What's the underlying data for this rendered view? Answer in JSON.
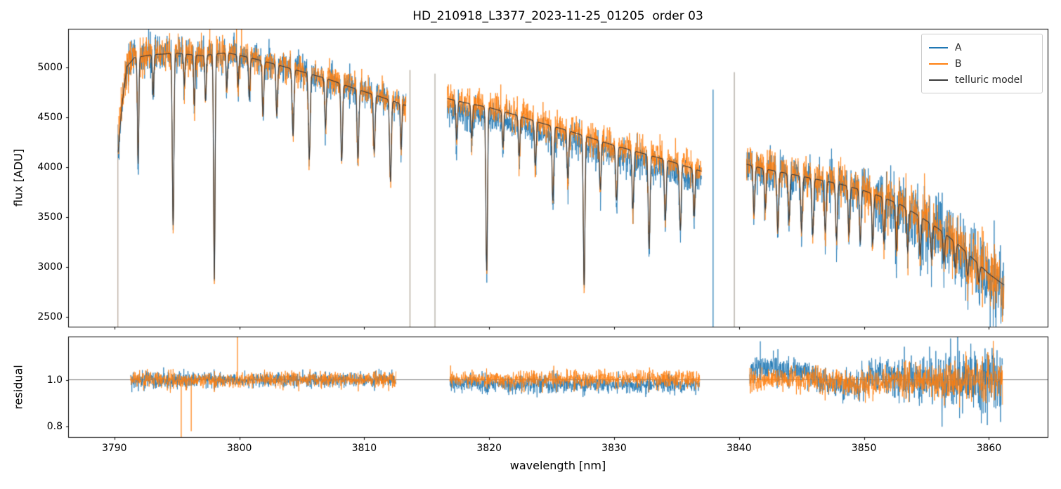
{
  "title": "HD_210918_L3377_2023-11-25_01205  order 03",
  "chart_data": {
    "type": "line",
    "title": "HD_210918_L3377_2023-11-25_01205  order 03",
    "xlabel": "wavelength [nm]",
    "xlim": [
      3786.3,
      3864.7
    ],
    "xticks": [
      3790,
      3800,
      3810,
      3820,
      3830,
      3840,
      3850,
      3860
    ],
    "legend_position": "upper right",
    "legend": [
      {
        "label": "A",
        "color": "#1f77b4"
      },
      {
        "label": "B",
        "color": "#ff7f0e"
      },
      {
        "label": "telluric model",
        "color": "#3b3b3b"
      }
    ],
    "panels": [
      {
        "ylabel": "flux [ADU]",
        "ylim": [
          2400,
          5390
        ],
        "yticks": [
          2500,
          3000,
          3500,
          4000,
          4500,
          5000
        ]
      },
      {
        "ylabel": "residual",
        "ylim": [
          0.755,
          1.185
        ],
        "yticks": [
          0.8,
          1.0
        ],
        "hline": 1.0
      }
    ],
    "sampling_step_nm": 0.02,
    "segments": [
      {
        "xrange": [
          3790.3,
          3813.35
        ],
        "res_xrange": [
          3791.3,
          3812.55
        ],
        "continuum": [
          [
            3790.3,
            4150
          ],
          [
            3790.6,
            4620
          ],
          [
            3791.0,
            5010
          ],
          [
            3791.6,
            5100
          ],
          [
            3793,
            5130
          ],
          [
            3795,
            5145
          ],
          [
            3797,
            5120
          ],
          [
            3799,
            5150
          ],
          [
            3800,
            5125
          ],
          [
            3801.5,
            5080
          ],
          [
            3803,
            5030
          ],
          [
            3805,
            4960
          ],
          [
            3807,
            4890
          ],
          [
            3809,
            4800
          ],
          [
            3811,
            4720
          ],
          [
            3813.35,
            4620
          ]
        ],
        "lines": [
          [
            3791.9,
            0.21,
            0.055
          ],
          [
            3793.1,
            0.08,
            0.06
          ],
          [
            3794.7,
            0.335,
            0.065
          ],
          [
            3795.6,
            0.06,
            0.055
          ],
          [
            3796.4,
            0.1,
            0.055
          ],
          [
            3797.3,
            0.09,
            0.055
          ],
          [
            3798.0,
            0.44,
            0.06
          ],
          [
            3799.0,
            0.07,
            0.055
          ],
          [
            3799.9,
            0.06,
            0.055
          ],
          [
            3800.8,
            0.08,
            0.06
          ],
          [
            3801.9,
            0.11,
            0.065
          ],
          [
            3803.0,
            0.1,
            0.065
          ],
          [
            3804.3,
            0.135,
            0.07
          ],
          [
            3805.6,
            0.175,
            0.07
          ],
          [
            3806.9,
            0.1,
            0.065
          ],
          [
            3808.2,
            0.16,
            0.07
          ],
          [
            3809.5,
            0.145,
            0.07
          ],
          [
            3810.8,
            0.12,
            0.07
          ],
          [
            3812.1,
            0.175,
            0.07
          ],
          [
            3812.95,
            0.1,
            0.055
          ]
        ],
        "noiseA": [
          [
            3790.3,
            110
          ],
          [
            3791.5,
            105
          ],
          [
            3794,
            95
          ],
          [
            3797,
            85
          ],
          [
            3800,
            80
          ],
          [
            3806,
            75
          ],
          [
            3813.35,
            72
          ]
        ],
        "noiseB": [
          [
            3790.3,
            110
          ],
          [
            3791.5,
            105
          ],
          [
            3794,
            95
          ],
          [
            3797,
            85
          ],
          [
            3800,
            80
          ],
          [
            3806,
            75
          ],
          [
            3813.35,
            72
          ]
        ],
        "offsetA": 0,
        "offsetB": 5
      },
      {
        "xrange": [
          3816.65,
          3837.0
        ],
        "res_xrange": [
          3816.85,
          3836.85
        ],
        "continuum": [
          [
            3816.65,
            4690
          ],
          [
            3818,
            4650
          ],
          [
            3820,
            4600
          ],
          [
            3822,
            4530
          ],
          [
            3824,
            4450
          ],
          [
            3826,
            4380
          ],
          [
            3828,
            4300
          ],
          [
            3830,
            4220
          ],
          [
            3832,
            4150
          ],
          [
            3834,
            4080
          ],
          [
            3836,
            4000
          ],
          [
            3837,
            3960
          ]
        ],
        "lines": [
          [
            3817.4,
            0.085,
            0.06
          ],
          [
            3818.6,
            0.075,
            0.06
          ],
          [
            3819.8,
            0.36,
            0.065
          ],
          [
            3821.1,
            0.08,
            0.06
          ],
          [
            3822.4,
            0.09,
            0.06
          ],
          [
            3823.7,
            0.1,
            0.065
          ],
          [
            3825.1,
            0.17,
            0.07
          ],
          [
            3826.3,
            0.11,
            0.065
          ],
          [
            3827.6,
            0.35,
            0.065
          ],
          [
            3828.9,
            0.115,
            0.065
          ],
          [
            3830.2,
            0.13,
            0.07
          ],
          [
            3831.5,
            0.14,
            0.07
          ],
          [
            3832.8,
            0.23,
            0.07
          ],
          [
            3834.1,
            0.15,
            0.07
          ],
          [
            3835.3,
            0.165,
            0.07
          ],
          [
            3836.4,
            0.12,
            0.065
          ]
        ],
        "noiseA": [
          [
            3816.65,
            85
          ],
          [
            3837,
            78
          ]
        ],
        "noiseB": [
          [
            3816.65,
            85
          ],
          [
            3837,
            78
          ]
        ],
        "offsetA": -85,
        "offsetB": 10
      },
      {
        "xrange": [
          3840.6,
          3861.2
        ],
        "res_xrange": [
          3840.85,
          3861.1
        ],
        "continuum": [
          [
            3840.6,
            4030
          ],
          [
            3842,
            3985
          ],
          [
            3844,
            3935
          ],
          [
            3846,
            3885
          ],
          [
            3848,
            3835
          ],
          [
            3850,
            3765
          ],
          [
            3851.5,
            3700
          ],
          [
            3853,
            3620
          ],
          [
            3854.5,
            3505
          ],
          [
            3856,
            3380
          ],
          [
            3857.5,
            3230
          ],
          [
            3859,
            3050
          ],
          [
            3860,
            2930
          ],
          [
            3861.2,
            2820
          ]
        ],
        "lines": [
          [
            3841.2,
            0.12,
            0.07
          ],
          [
            3842.1,
            0.1,
            0.07
          ],
          [
            3843.1,
            0.15,
            0.07
          ],
          [
            3844.0,
            0.12,
            0.07
          ],
          [
            3845.0,
            0.14,
            0.07
          ],
          [
            3845.9,
            0.145,
            0.07
          ],
          [
            3846.9,
            0.13,
            0.07
          ],
          [
            3847.8,
            0.145,
            0.07
          ],
          [
            3848.8,
            0.13,
            0.07
          ],
          [
            3849.7,
            0.14,
            0.07
          ],
          [
            3850.7,
            0.135,
            0.07
          ],
          [
            3851.6,
            0.12,
            0.07
          ],
          [
            3852.6,
            0.13,
            0.07
          ],
          [
            3853.5,
            0.12,
            0.07
          ],
          [
            3854.5,
            0.11,
            0.07
          ],
          [
            3855.4,
            0.1,
            0.07
          ],
          [
            3856.4,
            0.09,
            0.07
          ],
          [
            3857.3,
            0.08,
            0.07
          ],
          [
            3858.3,
            0.07,
            0.07
          ],
          [
            3859.2,
            0.06,
            0.07
          ]
        ],
        "noiseA": [
          [
            3840.6,
            95
          ],
          [
            3844,
            110
          ],
          [
            3848,
            115
          ],
          [
            3851,
            130
          ],
          [
            3853,
            160
          ],
          [
            3855,
            190
          ],
          [
            3857,
            205
          ],
          [
            3861.2,
            215
          ]
        ],
        "noiseB": [
          [
            3840.6,
            95
          ],
          [
            3845,
            100
          ],
          [
            3850,
            110
          ],
          [
            3853,
            125
          ],
          [
            3856,
            140
          ],
          [
            3861.2,
            150
          ]
        ],
        "offsetA": 0,
        "offsetB": 15,
        "res_offsetA": [
          [
            3840.85,
            0.045
          ],
          [
            3842.5,
            0.055
          ],
          [
            3844.5,
            0.04
          ],
          [
            3846,
            0.015
          ],
          [
            3847.2,
            -0.02
          ],
          [
            3848.6,
            -0.035
          ],
          [
            3849.8,
            -0.01
          ],
          [
            3851,
            0.02
          ],
          [
            3852.5,
            0.01
          ],
          [
            3854,
            0
          ],
          [
            3861.1,
            0
          ]
        ],
        "res_offsetB": [
          [
            3840.85,
            -0.01
          ],
          [
            3843,
            0
          ],
          [
            3848,
            -0.01
          ],
          [
            3850,
            -0.02
          ],
          [
            3852,
            -0.01
          ],
          [
            3861.1,
            0
          ]
        ]
      }
    ],
    "spikes": [
      {
        "x": 3790.28,
        "y0": 2400,
        "y1": 4430,
        "color": "#b3a696"
      },
      {
        "x": 3799.78,
        "y0": 5120,
        "y1": 5390,
        "color": "#ff7f0e"
      },
      {
        "x": 3813.66,
        "y0": 2400,
        "y1": 4975,
        "color": "#a89c8e"
      },
      {
        "x": 3815.66,
        "y0": 2400,
        "y1": 4940,
        "color": "#aaa49a"
      },
      {
        "x": 3837.92,
        "y0": 2400,
        "y1": 4780,
        "color": "#1f77b4"
      },
      {
        "x": 3839.62,
        "y0": 2400,
        "y1": 4955,
        "color": "#a6a096"
      }
    ],
    "res_spikes": [
      {
        "x": 3795.35,
        "y0": 0.728,
        "y1": 1.0,
        "color": "#ff7f0e"
      },
      {
        "x": 3796.15,
        "y0": 0.78,
        "y1": 1.0,
        "color": "#ff7f0e"
      },
      {
        "x": 3799.85,
        "y0": 1.0,
        "y1": 1.183,
        "color": "#ff7f0e"
      },
      {
        "x": 3841.7,
        "y0": 1.0,
        "y1": 1.165,
        "color": "#1f77b4"
      }
    ]
  }
}
